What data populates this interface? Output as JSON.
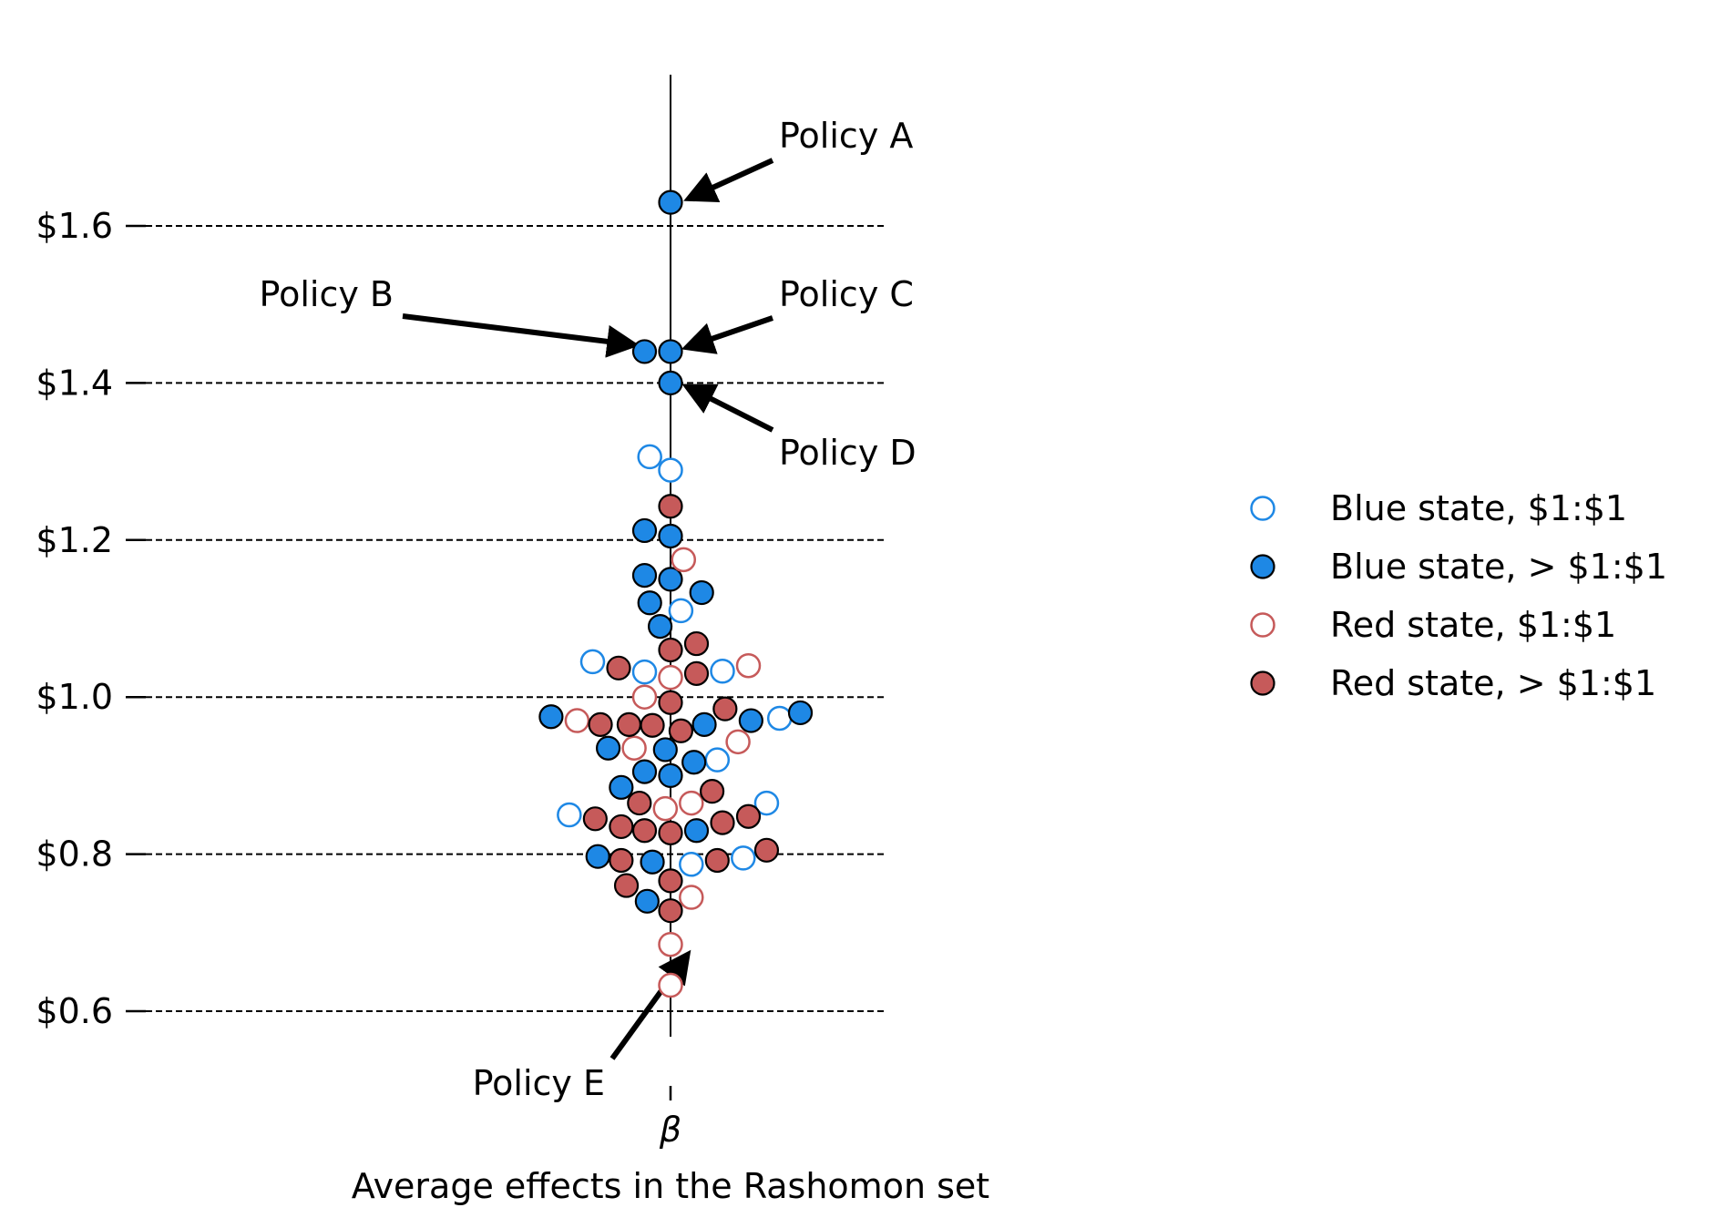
{
  "chart_data": {
    "type": "scatter",
    "subtype": "beeswarm",
    "xlabel": "Average effects in the Rashomon set",
    "x_tick_label": "β",
    "yticks": [
      {
        "value": 0.6,
        "label": "$0.6"
      },
      {
        "value": 0.8,
        "label": "$0.8"
      },
      {
        "value": 1.0,
        "label": "$1.0"
      },
      {
        "value": 1.2,
        "label": "$1.2"
      },
      {
        "value": 1.4,
        "label": "$1.4"
      },
      {
        "value": 1.6,
        "label": "$1.6"
      }
    ],
    "ylim": [
      0.47,
      1.79
    ],
    "grid": "horizontal dashed",
    "legend_position": "right",
    "series": [
      {
        "name": "Blue state, $1:$1",
        "filled": false,
        "color": "#1e88e5",
        "points": [
          {
            "offset": -0.8,
            "value": 1.306
          },
          {
            "offset": 0.0,
            "value": 1.289
          },
          {
            "offset": 0.4,
            "value": 1.11
          },
          {
            "offset": -3.0,
            "value": 1.045
          },
          {
            "offset": -1.0,
            "value": 1.032
          },
          {
            "offset": 2.0,
            "value": 1.033
          },
          {
            "offset": 4.2,
            "value": 0.973
          },
          {
            "offset": 1.8,
            "value": 0.92
          },
          {
            "offset": 3.7,
            "value": 0.865
          },
          {
            "offset": -3.9,
            "value": 0.85
          },
          {
            "offset": 0.8,
            "value": 0.787
          },
          {
            "offset": 2.8,
            "value": 0.795
          }
        ]
      },
      {
        "name": "Blue state, > $1:$1",
        "filled": true,
        "color": "#1e88e5",
        "points": [
          {
            "offset": 0.0,
            "value": 1.63
          },
          {
            "offset": -1.0,
            "value": 1.44
          },
          {
            "offset": 0.0,
            "value": 1.44
          },
          {
            "offset": 0.0,
            "value": 1.4
          },
          {
            "offset": -1.0,
            "value": 1.212
          },
          {
            "offset": 0.0,
            "value": 1.205
          },
          {
            "offset": -1.0,
            "value": 1.155
          },
          {
            "offset": 0.0,
            "value": 1.15
          },
          {
            "offset": 1.2,
            "value": 1.133
          },
          {
            "offset": -0.8,
            "value": 1.12
          },
          {
            "offset": -0.4,
            "value": 1.09
          },
          {
            "offset": -4.6,
            "value": 0.975
          },
          {
            "offset": 1.3,
            "value": 0.965
          },
          {
            "offset": 3.1,
            "value": 0.97
          },
          {
            "offset": 5.0,
            "value": 0.98
          },
          {
            "offset": -2.4,
            "value": 0.935
          },
          {
            "offset": -0.2,
            "value": 0.933
          },
          {
            "offset": 0.9,
            "value": 0.917
          },
          {
            "offset": -1.0,
            "value": 0.905
          },
          {
            "offset": 0.0,
            "value": 0.9
          },
          {
            "offset": -1.9,
            "value": 0.885
          },
          {
            "offset": 1.0,
            "value": 0.83
          },
          {
            "offset": -2.8,
            "value": 0.797
          },
          {
            "offset": -0.7,
            "value": 0.79
          },
          {
            "offset": -0.9,
            "value": 0.74
          }
        ]
      },
      {
        "name": "Red state, $1:$1",
        "filled": false,
        "color": "#c65a5a",
        "points": [
          {
            "offset": 0.5,
            "value": 1.175
          },
          {
            "offset": 0.0,
            "value": 1.025
          },
          {
            "offset": 3.0,
            "value": 1.04
          },
          {
            "offset": -1.0,
            "value": 1.0
          },
          {
            "offset": -3.6,
            "value": 0.97
          },
          {
            "offset": 2.6,
            "value": 0.943
          },
          {
            "offset": -1.4,
            "value": 0.935
          },
          {
            "offset": 0.8,
            "value": 0.865
          },
          {
            "offset": -0.2,
            "value": 0.858
          },
          {
            "offset": 0.8,
            "value": 0.745
          },
          {
            "offset": 0.0,
            "value": 0.685
          },
          {
            "offset": 0.0,
            "value": 0.633
          }
        ]
      },
      {
        "name": "Red state, > $1:$1",
        "filled": true,
        "color": "#c65a5a",
        "points": [
          {
            "offset": 0.0,
            "value": 1.243
          },
          {
            "offset": 0.0,
            "value": 1.06
          },
          {
            "offset": 1.0,
            "value": 1.068
          },
          {
            "offset": -2.0,
            "value": 1.037
          },
          {
            "offset": 1.0,
            "value": 1.03
          },
          {
            "offset": 0.0,
            "value": 0.993
          },
          {
            "offset": 2.1,
            "value": 0.985
          },
          {
            "offset": -2.7,
            "value": 0.965
          },
          {
            "offset": -1.6,
            "value": 0.965
          },
          {
            "offset": -0.7,
            "value": 0.964
          },
          {
            "offset": 0.4,
            "value": 0.957
          },
          {
            "offset": 1.6,
            "value": 0.88
          },
          {
            "offset": -1.2,
            "value": 0.865
          },
          {
            "offset": -2.9,
            "value": 0.845
          },
          {
            "offset": -1.9,
            "value": 0.835
          },
          {
            "offset": -1.0,
            "value": 0.83
          },
          {
            "offset": 0.0,
            "value": 0.827
          },
          {
            "offset": 2.0,
            "value": 0.84
          },
          {
            "offset": 3.0,
            "value": 0.848
          },
          {
            "offset": -1.9,
            "value": 0.792
          },
          {
            "offset": 1.8,
            "value": 0.792
          },
          {
            "offset": 3.7,
            "value": 0.805
          },
          {
            "offset": 0.0,
            "value": 0.766
          },
          {
            "offset": -1.7,
            "value": 0.76
          },
          {
            "offset": 0.0,
            "value": 0.728
          }
        ]
      }
    ],
    "annotations": [
      {
        "text": "Policy A",
        "target_value": 1.63,
        "target_offset": 0.0
      },
      {
        "text": "Policy B",
        "target_value": 1.44,
        "target_offset": -1.0
      },
      {
        "text": "Policy C",
        "target_value": 1.44,
        "target_offset": 0.0
      },
      {
        "text": "Policy D",
        "target_value": 1.4,
        "target_offset": 0.0
      },
      {
        "text": "Policy E",
        "target_value": 0.633,
        "target_offset": 0.0
      }
    ]
  }
}
